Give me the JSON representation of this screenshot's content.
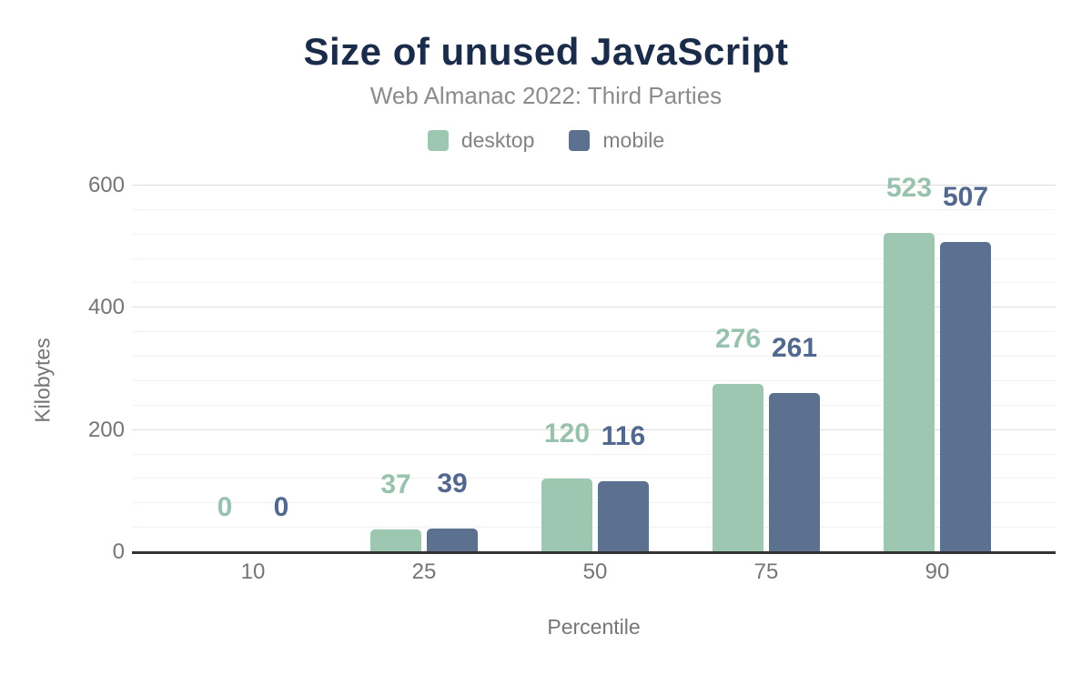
{
  "header": {
    "title": "Size of unused JavaScript",
    "subtitle": "Web Almanac 2022: Third Parties"
  },
  "colors": {
    "title_navy": "#1b2b4a",
    "axis_text_gray": "#757575",
    "subtitle_gray": "#8b8b8b",
    "desktop_green": "#9ec7b2",
    "mobile_slate": "#5c708f"
  },
  "chart_data": {
    "type": "bar",
    "title": "Size of unused JavaScript",
    "subtitle": "Web Almanac 2022: Third Parties",
    "categories": [
      "10",
      "25",
      "50",
      "75",
      "90"
    ],
    "series": [
      {
        "name": "desktop",
        "color": "#9ec7b2",
        "label_color": "#97c2ad",
        "values": [
          0,
          37,
          120,
          276,
          523
        ]
      },
      {
        "name": "mobile",
        "color": "#5c708f",
        "label_color": "#52688e",
        "values": [
          0,
          39,
          116,
          261,
          507
        ]
      }
    ],
    "xlabel": "Percentile",
    "ylabel": "Kilobytes",
    "ylim": [
      0,
      600
    ],
    "yticks": [
      0,
      200,
      400,
      600
    ],
    "minor_gridline_step": 40,
    "major_gridline_step": 200,
    "grid": true,
    "legend_position": "top",
    "data_labels": true
  }
}
